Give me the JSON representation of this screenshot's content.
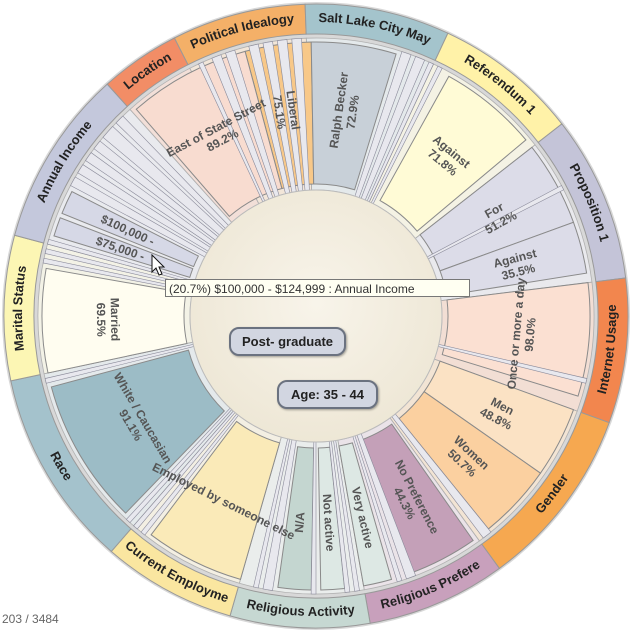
{
  "categories": [
    {
      "id": "political-ideology",
      "label": "Political Idealogy",
      "color": "#f4b068",
      "start": -27,
      "end": -2
    },
    {
      "id": "salt-lake-city-mayor",
      "label": "Salt Lake City May",
      "color": "#a4c4cc",
      "start": -2,
      "end": 25
    },
    {
      "id": "referendum-1",
      "label": "Referendum 1",
      "color": "#fff2a8",
      "start": 25,
      "end": 52
    },
    {
      "id": "proposition-1",
      "label": "Proposition 1",
      "color": "#c4c4d8",
      "start": 52,
      "end": 83
    },
    {
      "id": "internet-usage",
      "label": "Internet Usage",
      "color": "#f2864e",
      "start": 83,
      "end": 110
    },
    {
      "id": "gender",
      "label": "Gender",
      "color": "#f6a850",
      "start": 110,
      "end": 144
    },
    {
      "id": "religious-preference",
      "label": "Religious Prefere",
      "color": "#c8a0bc",
      "start": 144,
      "end": 170
    },
    {
      "id": "religious-activity",
      "label": "Religious Activity",
      "color": "#c6d8d2",
      "start": 170,
      "end": 196
    },
    {
      "id": "current-employment",
      "label": "Current Employme",
      "color": "#fae6a0",
      "start": 196,
      "end": 221
    },
    {
      "id": "race",
      "label": "Race",
      "color": "#a4c2cc",
      "start": 221,
      "end": 258
    },
    {
      "id": "marital-status",
      "label": "Marital Status",
      "color": "#fcf6b4",
      "start": 258,
      "end": 285
    },
    {
      "id": "annual-income",
      "label": "Annual Income",
      "color": "#c4c8dc",
      "start": 285,
      "end": 318
    },
    {
      "id": "location",
      "label": "Location",
      "color": "#f28d66",
      "start": 318,
      "end": 333
    }
  ],
  "wedges": [
    {
      "name": "Liberal",
      "pct": "75.1%",
      "start": -15,
      "end": -1,
      "color": "#f8c888"
    },
    {
      "name": "Ralph Becker",
      "pct": "72.9%",
      "start": -1,
      "end": 17,
      "color": "#c8d0d8"
    },
    {
      "name": "Against",
      "pct": "71.8%",
      "start": 29,
      "end": 50,
      "color": "#fffbd6"
    },
    {
      "name": "For",
      "pct": "51.2%",
      "start": 52,
      "end": 70,
      "color": "#dcdce8"
    },
    {
      "name": "Against",
      "pct": "35.5%",
      "start": 70,
      "end": 81,
      "color": "#dcdce8"
    },
    {
      "name": "Once or more a day",
      "pct": "98.0%",
      "start": 83,
      "end": 107,
      "color": "#fbe0d2"
    },
    {
      "name": "Men",
      "pct": "48.8%",
      "start": 110,
      "end": 125,
      "color": "#fbe2c4"
    },
    {
      "name": "Women",
      "pct": "50.7%",
      "start": 125,
      "end": 141,
      "color": "#fbd0a0"
    },
    {
      "name": "No Preference",
      "pct": "44.3%",
      "start": 145,
      "end": 160,
      "color": "#c4a0b8"
    },
    {
      "name": "Very active",
      "pct": "",
      "start": 164,
      "end": 170,
      "color": "#dde8e4"
    },
    {
      "name": "Not active",
      "pct": "",
      "start": 174,
      "end": 179,
      "color": "#dde8e4"
    },
    {
      "name": "N/A",
      "pct": "",
      "start": 181,
      "end": 188,
      "color": "#c4d6d0"
    },
    {
      "name": "Employed by someone else",
      "pct": "",
      "start": 196,
      "end": 217,
      "color": "#faeab8"
    },
    {
      "name": "White / Caucasian",
      "pct": "91.1%",
      "start": 224,
      "end": 255,
      "color": "#9cbcc6"
    },
    {
      "name": "Married",
      "pct": "69.5%",
      "start": 258,
      "end": 280,
      "color": "#fffdf0"
    },
    {
      "name": "$100,000 -",
      "pct": "",
      "start": 292,
      "end": 297,
      "color": "#d6d8e6"
    },
    {
      "name": "$75,000 -",
      "pct": "",
      "start": 287,
      "end": 291,
      "color": "#d6d8e6"
    },
    {
      "name": "East of State Street",
      "pct": "89.2%",
      "start": 319,
      "end": 345,
      "color": "#f8dcd0"
    }
  ],
  "tooltip": "(20.7%) $100,000 - $124,999 : Annual Income",
  "center": {
    "education": "Post- graduate",
    "age": "Age: 35 - 44"
  },
  "counter": "203 / 3484"
}
